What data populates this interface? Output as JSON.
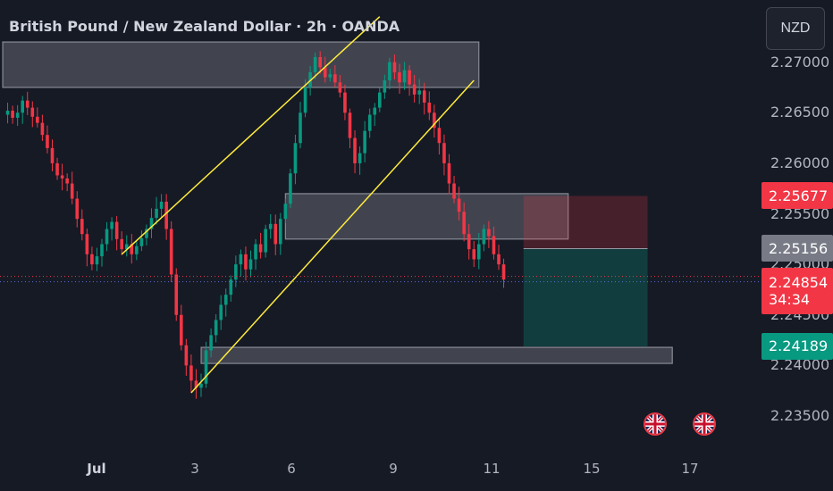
{
  "header": {
    "title": "British Pound / New Zealand Dollar · 2h · OANDA",
    "currency_button": "NZD"
  },
  "colors": {
    "up": "#089981",
    "down": "#f23645",
    "trendline": "#ffeb3b",
    "background": "#161a25"
  },
  "chart_data": {
    "type": "candlestick",
    "title": "British Pound / New Zealand Dollar · 2h · OANDA",
    "y_ticks": [
      "2.27000",
      "2.26500",
      "2.26000",
      "2.25500",
      "2.25000",
      "2.24500",
      "2.24000",
      "2.23500"
    ],
    "x_ticks": [
      {
        "label": "Jul",
        "bold": true
      },
      {
        "label": "3"
      },
      {
        "label": "6"
      },
      {
        "label": "9"
      },
      {
        "label": "11"
      },
      {
        "label": "15"
      },
      {
        "label": "17"
      }
    ],
    "ylim": [
      2.232,
      2.2735
    ],
    "price_series": [
      2.2648,
      2.2652,
      2.2645,
      2.265,
      2.2662,
      2.2655,
      2.2646,
      2.264,
      2.2628,
      2.2615,
      2.26,
      2.2588,
      2.2585,
      2.258,
      2.2565,
      2.2545,
      2.253,
      2.251,
      2.25,
      2.2508,
      2.252,
      2.2535,
      2.2542,
      2.2525,
      2.2515,
      2.252,
      2.251,
      2.2518,
      2.2526,
      2.2535,
      2.2546,
      2.2555,
      2.2562,
      2.2535,
      2.249,
      2.245,
      2.242,
      2.24,
      2.2385,
      2.2378,
      2.2382,
      2.2415,
      2.243,
      2.2445,
      2.246,
      2.247,
      2.2485,
      2.25,
      2.251,
      2.2495,
      2.2505,
      2.252,
      2.2512,
      2.2535,
      2.254,
      2.252,
      2.2545,
      2.256,
      2.259,
      2.262,
      2.265,
      2.2675,
      2.269,
      2.2705,
      2.2695,
      2.2685,
      2.2688,
      2.268,
      2.267,
      2.265,
      2.2625,
      2.26,
      2.261,
      2.2632,
      2.2648,
      2.2655,
      2.267,
      2.2682,
      2.27,
      2.269,
      2.268,
      2.2692,
      2.2678,
      2.2668,
      2.2672,
      2.266,
      2.265,
      2.2635,
      2.262,
      2.26,
      2.258,
      2.2565,
      2.2552,
      2.253,
      2.2515,
      2.2505,
      2.252,
      2.2535,
      2.2528,
      2.251,
      2.25,
      2.2485
    ],
    "x_range_index": [
      0,
      102
    ],
    "price_lines": [
      {
        "label": "2.25677",
        "value": 2.25677,
        "color": "#f23645"
      },
      {
        "label": "2.25156",
        "value": 2.25156,
        "color": "#787b86"
      },
      {
        "label": "2.24854",
        "value": 2.24854,
        "color": "#f23645",
        "countdown": "34:34"
      },
      {
        "label": "2.24189",
        "value": 2.24189,
        "color": "#089981"
      }
    ],
    "zones": [
      {
        "from": 2.2675,
        "to": 2.272,
        "x_from": 0,
        "x_to": 96
      },
      {
        "from": 2.2525,
        "to": 2.257,
        "x_from": 57,
        "x_to": 114
      },
      {
        "from": 2.2402,
        "to": 2.2418,
        "x_from": 40,
        "x_to": 135
      }
    ],
    "trendlines": [
      {
        "x1": 24,
        "y1": 2.251,
        "x2": 76,
        "y2": 2.2745
      },
      {
        "x1": 38,
        "y1": 2.2373,
        "x2": 95,
        "y2": 2.2682
      }
    ],
    "position": {
      "stop": 2.25677,
      "entry": 2.25156,
      "target": 2.24189,
      "x_from": 105,
      "x_to": 130
    },
    "events": [
      {
        "icon": "uk-flag-icon"
      },
      {
        "icon": "uk-flag-icon"
      }
    ]
  }
}
